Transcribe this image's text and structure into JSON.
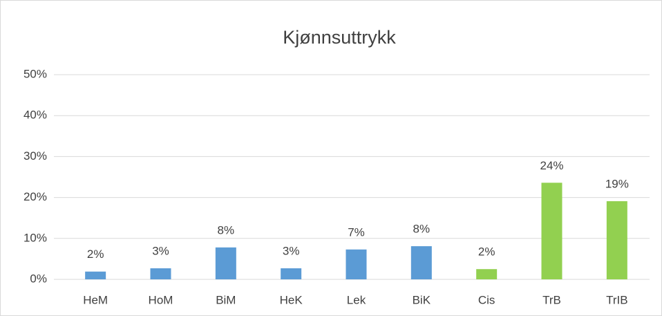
{
  "chart_data": {
    "type": "bar",
    "title": "Kjønnsuttrykk",
    "categories": [
      "HeM",
      "HoM",
      "BiM",
      "HeK",
      "Lek",
      "BiK",
      "Cis",
      "TrB",
      "TrIB"
    ],
    "values": [
      1.9,
      2.7,
      7.8,
      2.7,
      7.3,
      8.1,
      2.5,
      23.6,
      19.1
    ],
    "value_labels": [
      "2%",
      "3%",
      "8%",
      "3%",
      "7%",
      "8%",
      "2%",
      "24%",
      "19%"
    ],
    "colors": [
      "#5b9bd5",
      "#5b9bd5",
      "#5b9bd5",
      "#5b9bd5",
      "#5b9bd5",
      "#5b9bd5",
      "#92d050",
      "#92d050",
      "#92d050"
    ],
    "ylim": [
      0,
      50
    ],
    "yticks": [
      {
        "value": 0,
        "label": "0%"
      },
      {
        "value": 10,
        "label": "10%"
      },
      {
        "value": 20,
        "label": "20%"
      },
      {
        "value": 30,
        "label": "30%"
      },
      {
        "value": 40,
        "label": "40%"
      },
      {
        "value": 50,
        "label": "50%"
      }
    ],
    "grid": true
  }
}
